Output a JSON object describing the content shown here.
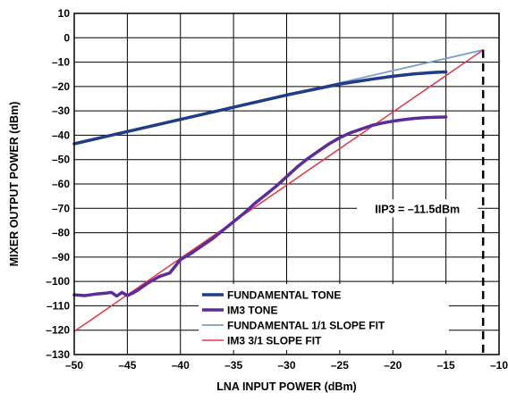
{
  "chart_data": {
    "type": "line",
    "xlabel": "LNA INPUT POWER (dBm)",
    "ylabel": "MIXER OUTPUT POWER (dBm)",
    "xlim": [
      -50,
      -10
    ],
    "ylim": [
      -130,
      10
    ],
    "xticks": [
      -50,
      -45,
      -40,
      -35,
      -30,
      -25,
      -20,
      -15,
      -10
    ],
    "yticks": [
      10,
      0,
      -10,
      -20,
      -30,
      -40,
      -50,
      -60,
      -70,
      -80,
      -90,
      -100,
      -110,
      -120,
      -130
    ],
    "xtick_labels": [
      "–50",
      "–45",
      "–40",
      "–35",
      "–30",
      "–25",
      "–20",
      "–15",
      "–10"
    ],
    "ytick_labels": [
      "10",
      "0",
      "–10",
      "–20",
      "–30",
      "–40",
      "–50",
      "–60",
      "–70",
      "–80",
      "–90",
      "–100",
      "–110",
      "–120",
      "–130"
    ],
    "grid": true,
    "legend_position": "bottom-center",
    "series": [
      {
        "name": "FUNDAMENTAL TONE",
        "color": "#1f3c88",
        "x": [
          -50,
          -45,
          -40,
          -35,
          -30,
          -25,
          -22,
          -20,
          -18,
          -16,
          -15
        ],
        "y": [
          -43.5,
          -38.5,
          -33.5,
          -28.5,
          -23.5,
          -19,
          -17,
          -15.8,
          -14.8,
          -14.2,
          -14
        ]
      },
      {
        "name": "IM3 TONE",
        "color": "#5b2d9c",
        "x": [
          -50,
          -49,
          -48,
          -47,
          -46.5,
          -46,
          -45.5,
          -45,
          -44.5,
          -44,
          -43.5,
          -43,
          -42,
          -41,
          -40,
          -39,
          -38,
          -37,
          -36,
          -35,
          -34,
          -33,
          -32,
          -31,
          -30,
          -29,
          -28,
          -27,
          -26,
          -25,
          -24,
          -23,
          -22,
          -21,
          -20,
          -19,
          -18,
          -17,
          -16,
          -15
        ],
        "y": [
          -105.5,
          -105.8,
          -105.2,
          -104.8,
          -104.5,
          -106,
          -104.5,
          -105.8,
          -104.8,
          -103.5,
          -102,
          -100.5,
          -98,
          -96.5,
          -91,
          -88.5,
          -85.5,
          -82.5,
          -79,
          -75.5,
          -72,
          -68,
          -64.5,
          -61,
          -57,
          -53,
          -49.5,
          -46.5,
          -43.5,
          -41,
          -39,
          -37.5,
          -36,
          -35,
          -34.2,
          -33.6,
          -33.1,
          -32.8,
          -32.6,
          -32.5
        ]
      },
      {
        "name": "FUNDAMENTAL 1/1 SLOPE FIT",
        "color": "#7a9cd0",
        "x": [
          -50,
          -11.5
        ],
        "y": [
          -43.5,
          -5
        ]
      },
      {
        "name": "IM3 3/1 SLOPE FIT",
        "color": "#e8354a",
        "x": [
          -50,
          -11.5
        ],
        "y": [
          -120.5,
          -5
        ]
      }
    ],
    "annotations": [
      {
        "text": "IIP3 = –11.5dBm",
        "x": -11.5,
        "style": "dashed-vertical-line"
      }
    ]
  }
}
